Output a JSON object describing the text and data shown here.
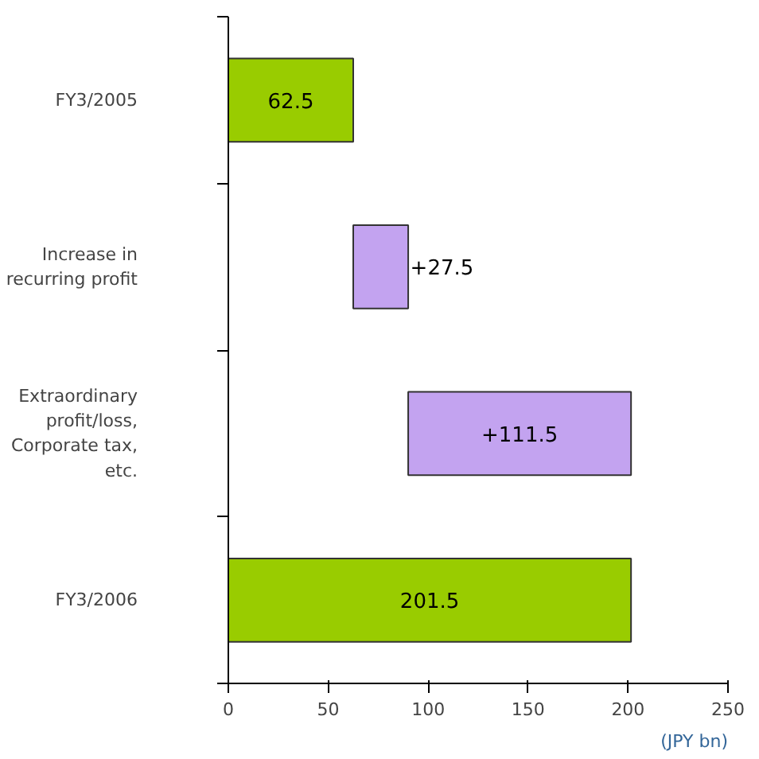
{
  "chart_data": {
    "type": "bar",
    "orientation": "horizontal",
    "categories": [
      "FY3/2005",
      "Increase in\nrecurring profit",
      "Extraordinary\nprofit/loss,\nCorporate tax,\netc.",
      "FY3/2006"
    ],
    "values": [
      62.5,
      27.5,
      111.5,
      201.5
    ],
    "base": [
      0,
      62.5,
      90,
      0
    ],
    "colors": [
      "#99cc00",
      "#c3a3f0",
      "#c3a3f0",
      "#99cc00"
    ],
    "value_labels": [
      "62.5",
      "+27.5",
      "+111.5",
      "201.5"
    ],
    "xlim": [
      0,
      250
    ],
    "xticks": [
      0,
      50,
      100,
      150,
      200,
      250
    ],
    "xlabel": "(JPY bn)",
    "grid": false
  }
}
